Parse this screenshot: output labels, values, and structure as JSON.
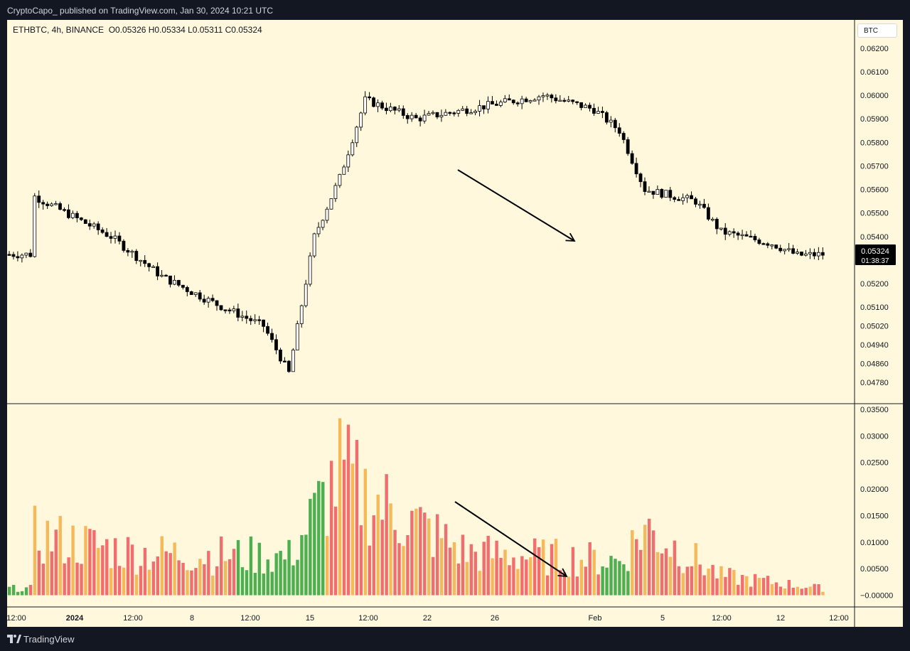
{
  "header": {
    "publisher": "CryptoCapo_ published on TradingView.com, Jan 30, 2024 10:21 UTC"
  },
  "legend": {
    "symbol": "ETHBTC, 4h, BINANCE",
    "ohlc": "O0.05326  H0.05334  L0.05311  C0.05324"
  },
  "currency_badge": "BTC",
  "footer": {
    "brand": "TradingView"
  },
  "colors": {
    "up": "#ffffff",
    "down": "#000000",
    "vol_green": "#4caf50",
    "vol_red": "#f06e6e",
    "vol_orange": "#f5b95a",
    "background": "#fff8dc"
  },
  "chart_data": [
    {
      "type": "candlestick",
      "interval": "4h",
      "price_axis_ticks": [
        "0.06200",
        "0.06100",
        "0.06000",
        "0.05900",
        "0.05800",
        "0.05700",
        "0.05600",
        "0.05500",
        "0.05400",
        "0.05300",
        "0.05200",
        "0.05100",
        "0.05020",
        "0.04940",
        "0.04860",
        "0.04780"
      ],
      "last_price": "0.05324",
      "countdown": "01:38:37",
      "ylim": [
        0.0472,
        0.0629
      ],
      "key_points": [
        {
          "date": "Dec 30 12:00",
          "close": 0.0557
        },
        {
          "date": "Jan 2",
          "close": 0.054
        },
        {
          "date": "Jan 4",
          "close": 0.0523
        },
        {
          "date": "Jan 6",
          "close": 0.0512
        },
        {
          "date": "Jan 8",
          "close": 0.0502
        },
        {
          "date": "Jan 9",
          "close": 0.0482
        },
        {
          "date": "Jan 10",
          "close": 0.054
        },
        {
          "date": "Jan 11",
          "close": 0.0565
        },
        {
          "date": "Jan 12",
          "close": 0.0598
        },
        {
          "date": "Jan 14",
          "close": 0.059
        },
        {
          "date": "Jan 17",
          "close": 0.0596
        },
        {
          "date": "Jan 19",
          "close": 0.06
        },
        {
          "date": "Jan 21",
          "close": 0.0594
        },
        {
          "date": "Jan 22",
          "close": 0.0585
        },
        {
          "date": "Jan 23",
          "close": 0.056
        },
        {
          "date": "Jan 25",
          "close": 0.0555
        },
        {
          "date": "Jan 26",
          "close": 0.0542
        },
        {
          "date": "Jan 28",
          "close": 0.0537
        },
        {
          "date": "Jan 29",
          "close": 0.0532
        },
        {
          "date": "Jan 30",
          "close": 0.05324
        }
      ],
      "annotation": {
        "type": "arrow",
        "from": {
          "date": "Jan 23",
          "price": 0.0567
        },
        "to": {
          "date": "Jan 30",
          "price": 0.0537
        }
      }
    },
    {
      "type": "bar",
      "name": "volume oscillator",
      "axis_ticks": [
        "0.03500",
        "0.03000",
        "0.02500",
        "0.02000",
        "0.01500",
        "0.01000",
        "0.00500",
        "−0.00000"
      ],
      "ylim": [
        -0.0014,
        0.0354
      ],
      "peaks": [
        {
          "date": "Dec 30",
          "value": 0.0155
        },
        {
          "date": "Jan 3",
          "value": 0.011
        },
        {
          "date": "Jan 9",
          "value": 0.01
        },
        {
          "date": "Jan 11",
          "value": 0.0318
        },
        {
          "date": "Jan 12",
          "value": 0.026
        },
        {
          "date": "Jan 16",
          "value": 0.011
        },
        {
          "date": "Jan 22",
          "value": 0.009
        },
        {
          "date": "Jan 23",
          "value": 0.0175
        },
        {
          "date": "Jan 26",
          "value": 0.005
        },
        {
          "date": "Jan 30",
          "value": 0.0018
        }
      ],
      "annotation": {
        "type": "arrow",
        "from": {
          "date": "Jan 23",
          "value": 0.0175
        },
        "to": {
          "date": "Jan 30",
          "value": 0.0025
        }
      }
    }
  ],
  "time_axis": [
    "12:00",
    "2024",
    "12:00",
    "8",
    "12:00",
    "15",
    "12:00",
    "22",
    "26",
    "Feb",
    "5",
    "12:00",
    "12",
    "12:00"
  ]
}
